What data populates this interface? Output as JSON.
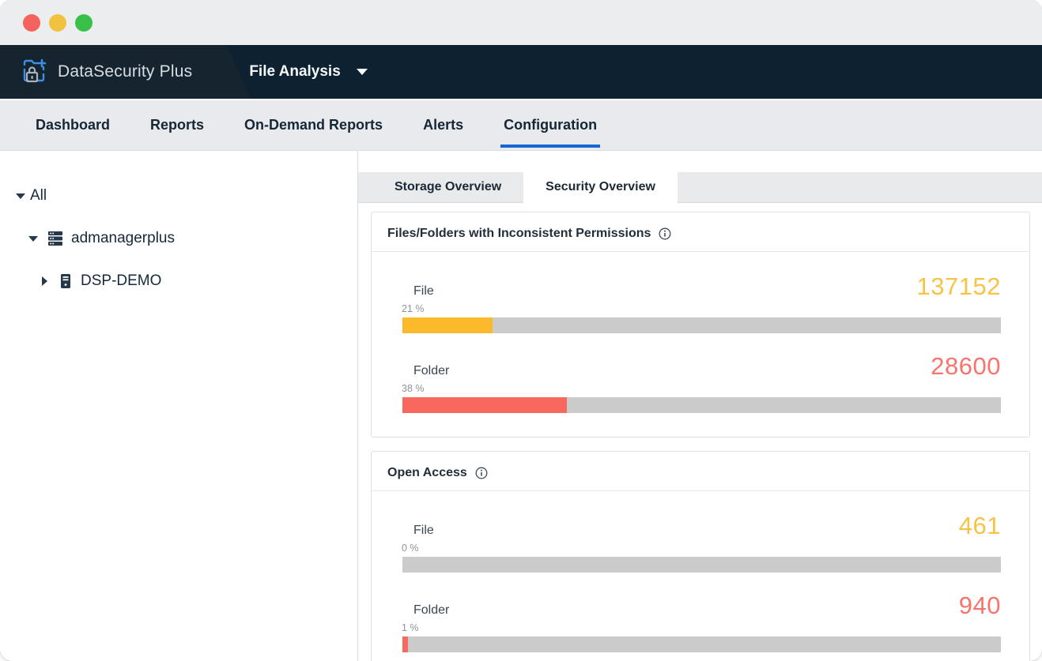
{
  "window": {
    "traffic_lights": [
      {
        "name": "close",
        "color": "#F4635D"
      },
      {
        "name": "minimize",
        "color": "#F1C23F"
      },
      {
        "name": "zoom",
        "color": "#38C149"
      }
    ]
  },
  "header": {
    "product_name": "DataSecurity Plus",
    "module_selector": {
      "label": "File Analysis"
    }
  },
  "nav": {
    "items": [
      {
        "label": "Dashboard",
        "active": false
      },
      {
        "label": "Reports",
        "active": false
      },
      {
        "label": "On-Demand Reports",
        "active": false
      },
      {
        "label": "Alerts",
        "active": false
      },
      {
        "label": "Configuration",
        "active": true
      }
    ]
  },
  "sidebar": {
    "tree": [
      {
        "label": "All",
        "state": "expanded",
        "icon": null
      },
      {
        "label": "admanagerplus",
        "state": "expanded",
        "icon": "domain-icon"
      },
      {
        "label": "DSP-DEMO",
        "state": "collapsed",
        "icon": "server-icon"
      }
    ]
  },
  "content": {
    "tabs": [
      {
        "label": "Storage Overview",
        "active": false
      },
      {
        "label": "Security Overview",
        "active": true
      }
    ],
    "cards": [
      {
        "title": "Files/Folders with Inconsistent Permissions",
        "rows": [
          {
            "label": "File",
            "percent_label": "21 %",
            "value": "137152",
            "fill_pct": 15,
            "fill_color": "#FDB92C",
            "value_color": "#F7C347"
          },
          {
            "label": "Folder",
            "percent_label": "38 %",
            "value": "28600",
            "fill_pct": 27.5,
            "fill_color": "#F9685E",
            "value_color": "#F9736C"
          }
        ]
      },
      {
        "title": "Open Access",
        "rows": [
          {
            "label": "File",
            "percent_label": "0 %",
            "value": "461",
            "fill_pct": 0,
            "fill_color": "#FDB92C",
            "value_color": "#F7C347"
          },
          {
            "label": "Folder",
            "percent_label": "1 %",
            "value": "940",
            "fill_pct": 0.9,
            "fill_color": "#F9685E",
            "value_color": "#F9736C"
          }
        ]
      }
    ]
  },
  "colors": {
    "header_bg": "#0D2130",
    "header_left_bg": "#16242F",
    "nav_active_underline": "#1567D3",
    "bar_track": "#CBCBCB",
    "amber": "#FDB92C",
    "red": "#F9685E"
  }
}
